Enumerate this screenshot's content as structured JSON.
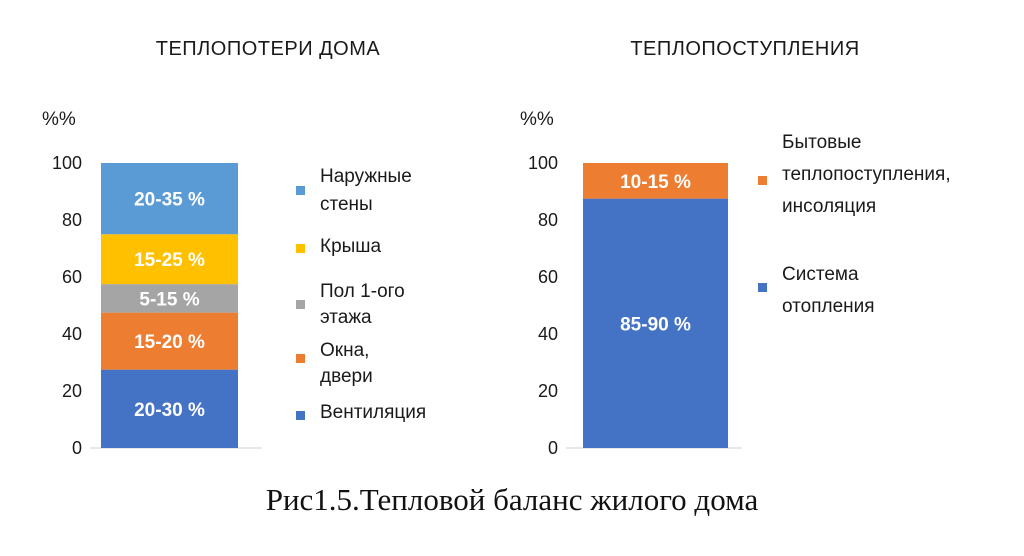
{
  "caption": "Рис1.5.Тепловой баланс жилого дома",
  "chart_data": [
    {
      "type": "bar",
      "stacked": true,
      "title": "ТЕПЛОПОТЕРИ  ДОМА",
      "ylabel": "%%",
      "ylim": [
        0,
        100
      ],
      "yticks": [
        0,
        20,
        40,
        60,
        80,
        100
      ],
      "legend_position": "right",
      "series": [
        {
          "name": "Вентиляция",
          "label": "20-30 %",
          "value": 27.5,
          "color": "#4472C4"
        },
        {
          "name": "Окна, двери",
          "label": "15-20 %",
          "value": 20,
          "color": "#ED7D31"
        },
        {
          "name": "Пол 1-ого этажа",
          "label": "5-15 %",
          "value": 10,
          "color": "#A5A5A5"
        },
        {
          "name": "Крыша",
          "label": "15-25 %",
          "value": 17.5,
          "color": "#FFC000"
        },
        {
          "name": "Наружные стены",
          "label": "20-35 %",
          "value": 25,
          "color": "#5B9BD5"
        }
      ]
    },
    {
      "type": "bar",
      "stacked": true,
      "title": "ТЕПЛОПОСТУПЛЕНИЯ",
      "ylabel": "%%",
      "ylim": [
        0,
        100
      ],
      "yticks": [
        0,
        20,
        40,
        60,
        80,
        100
      ],
      "legend_position": "right",
      "series": [
        {
          "name": "Система отопления",
          "label": "85-90 %",
          "value": 87.5,
          "color": "#4472C4"
        },
        {
          "name": "Бытовые теплопоступления, инсоляция",
          "label": "10-15 %",
          "value": 12.5,
          "color": "#ED7D31"
        }
      ]
    }
  ]
}
